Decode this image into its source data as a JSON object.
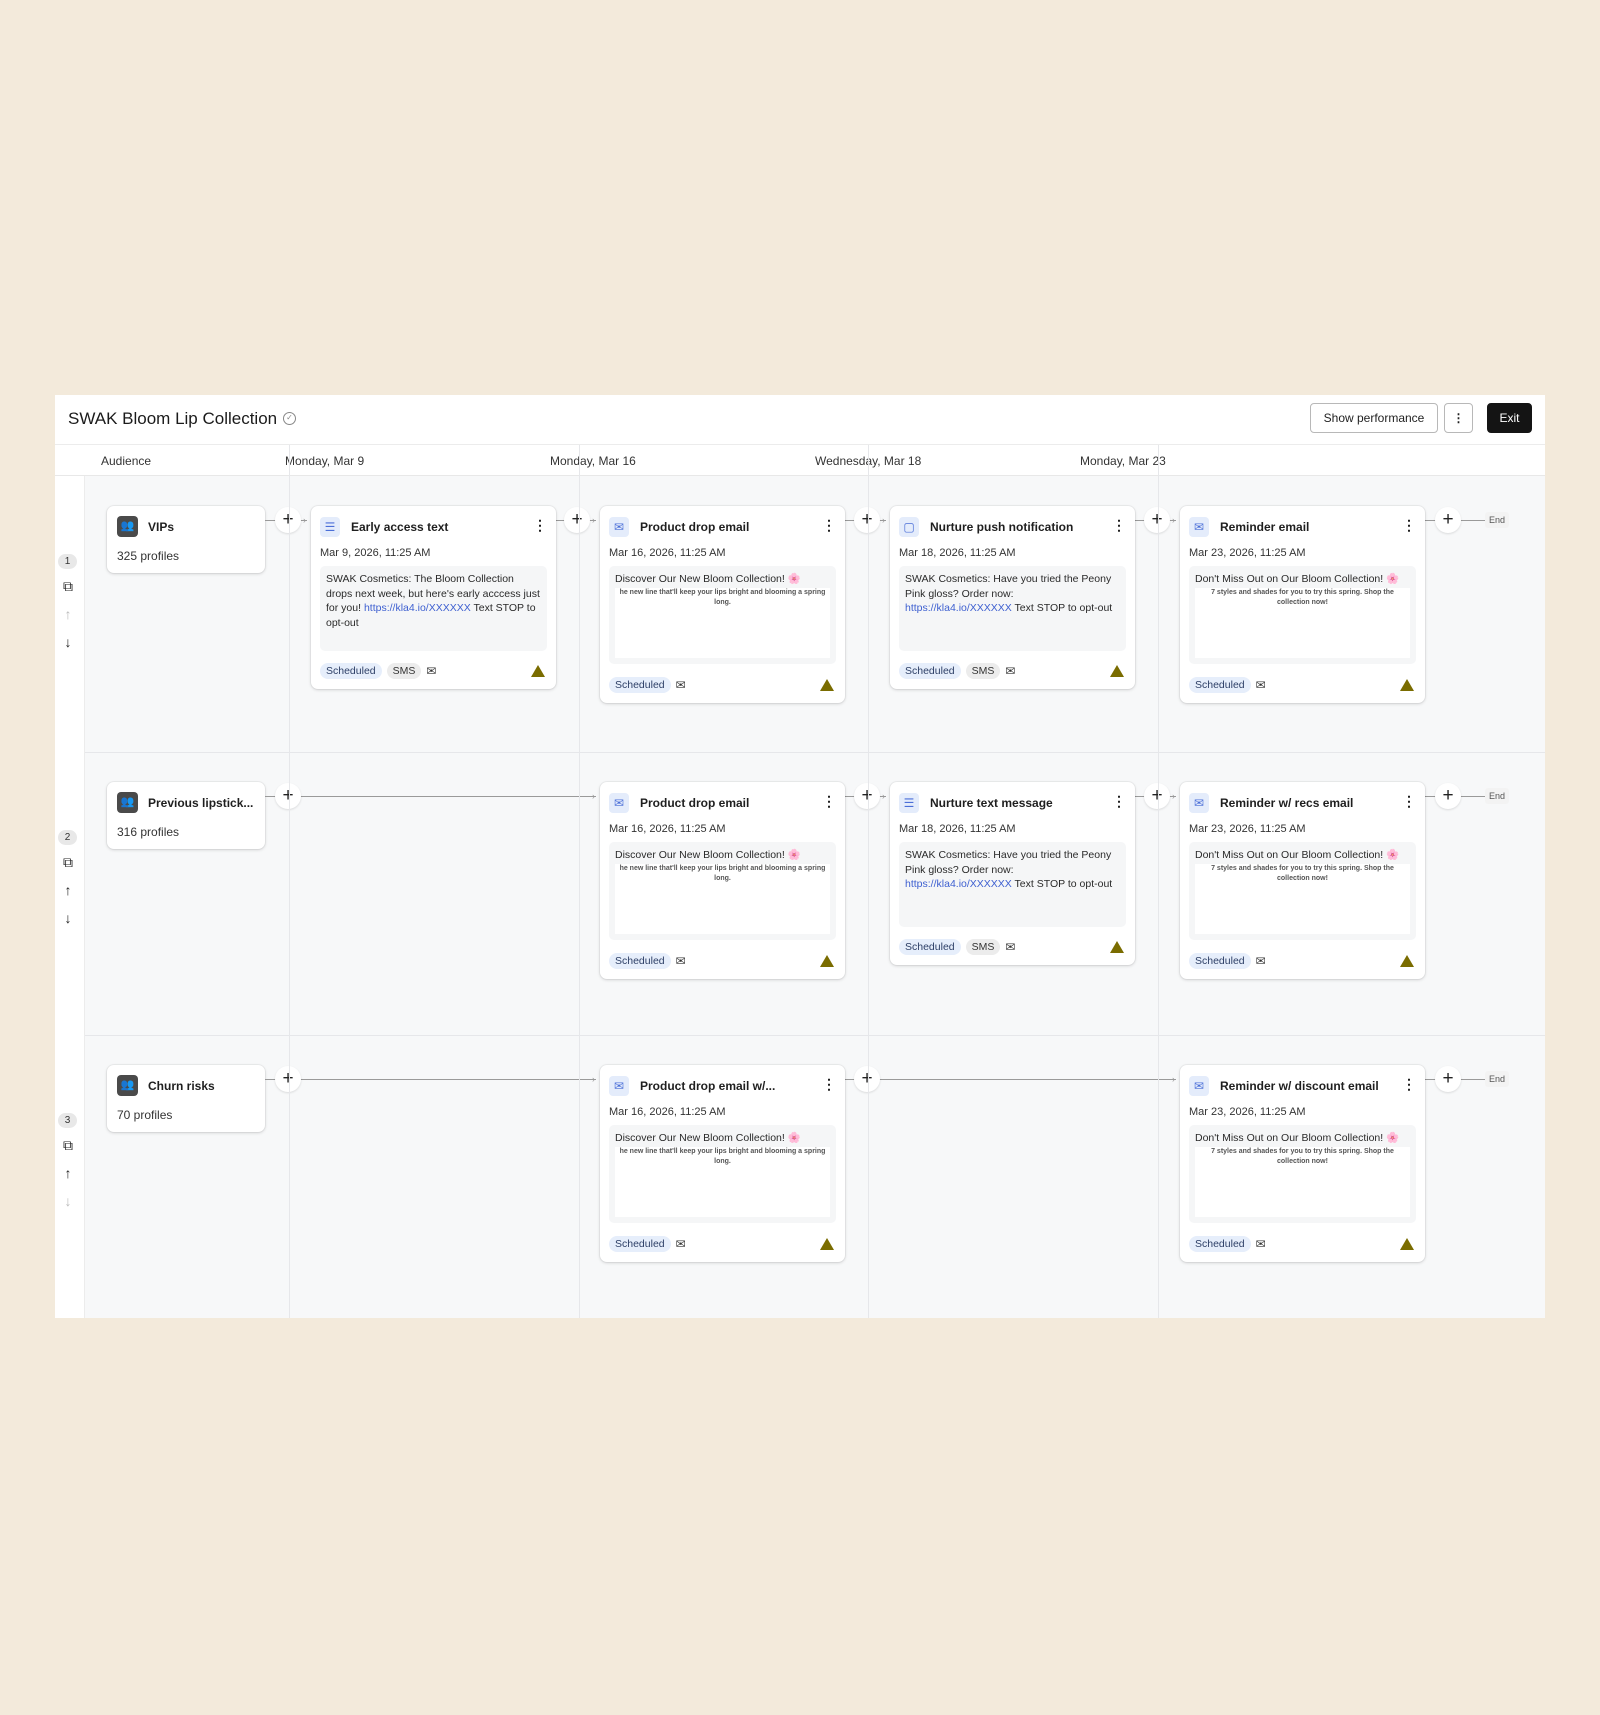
{
  "header": {
    "title": "SWAK Bloom Lip Collection",
    "show_performance": "Show performance",
    "more": "⋮",
    "exit": "Exit"
  },
  "columns": [
    "Audience",
    "Monday, Mar 9",
    "Monday, Mar 16",
    "Wednesday, Mar 18",
    "Monday, Mar 23"
  ],
  "end_label": "End",
  "status_colors": {
    "scheduled_bg": "#e6eefb",
    "warning": "#7a6c00",
    "exit_bg": "#141414"
  },
  "rows": [
    {
      "number": "1",
      "audience": {
        "name": "VIPs",
        "count": "325 profiles"
      },
      "up_enabled": false,
      "down_enabled": true,
      "cells": [
        {
          "channel": "sms",
          "icon": "message-icon",
          "title": "Early access text",
          "date": "Mar 9, 2026, 11:25 AM",
          "text": "SWAK Cosmetics: The Bloom Collection drops next week, but here's early acccess just for you! ",
          "link": "https://kla4.io/XXXXXX",
          "text_after": " Text STOP to opt-out",
          "status": "Scheduled",
          "type_tag": "SMS"
        },
        {
          "channel": "email",
          "icon": "mail-icon",
          "title": "Product drop email",
          "date": "Mar 16, 2026, 11:25 AM",
          "subject": "Discover Our New Bloom Collection! 🌸",
          "body": "he new line that'll keep your lips bright and blooming a spring long.",
          "status": "Scheduled"
        },
        {
          "channel": "sms",
          "icon": "push-notification-icon",
          "title": "Nurture push notification",
          "date": "Mar 18, 2026, 11:25 AM",
          "text": "SWAK Cosmetics: Have you tried the Peony Pink gloss? Order now: ",
          "link": "https://kla4.io/XXXXXX",
          "text_after": " Text STOP to opt-out",
          "status": "Scheduled",
          "type_tag": "SMS"
        },
        {
          "channel": "email",
          "icon": "mail-icon",
          "title": "Reminder email",
          "date": "Mar 23, 2026, 11:25 AM",
          "subject": "Don't Miss Out on Our Bloom Collection! 🌸",
          "body": "7 styles and shades for you to try this spring. Shop the collection now!",
          "status": "Scheduled"
        }
      ]
    },
    {
      "number": "2",
      "audience": {
        "name": "Previous lipstick...",
        "count": "316 profiles"
      },
      "up_enabled": true,
      "down_enabled": true,
      "cells": [
        null,
        {
          "channel": "email",
          "icon": "mail-icon",
          "title": "Product drop email",
          "date": "Mar 16, 2026, 11:25 AM",
          "subject": "Discover Our New Bloom Collection! 🌸",
          "body": "he new line that'll keep your lips bright and blooming a spring long.",
          "status": "Scheduled"
        },
        {
          "channel": "sms",
          "icon": "message-icon",
          "title": "Nurture text message",
          "date": "Mar 18, 2026, 11:25 AM",
          "text": "SWAK Cosmetics: Have you tried the Peony Pink gloss? Order now: ",
          "link": "https://kla4.io/XXXXXX",
          "text_after": " Text STOP to opt-out",
          "status": "Scheduled",
          "type_tag": "SMS"
        },
        {
          "channel": "email",
          "icon": "mail-icon",
          "title": "Reminder w/ recs email",
          "date": "Mar 23, 2026, 11:25 AM",
          "subject": "Don't Miss Out on Our Bloom Collection! 🌸",
          "body": "7 styles and shades for you to try this spring. Shop the collection now!",
          "status": "Scheduled"
        }
      ]
    },
    {
      "number": "3",
      "audience": {
        "name": "Churn risks",
        "count": "70 profiles"
      },
      "up_enabled": true,
      "down_enabled": false,
      "cells": [
        null,
        {
          "channel": "email",
          "icon": "mail-icon",
          "title": "Product drop email w/...",
          "date": "Mar 16, 2026, 11:25 AM",
          "subject": "Discover Our New Bloom Collection! 🌸",
          "body": "he new line that'll keep your lips bright and blooming a spring long.",
          "status": "Scheduled"
        },
        null,
        {
          "channel": "email",
          "icon": "mail-icon",
          "title": "Reminder w/ discount email",
          "date": "Mar 23, 2026, 11:25 AM",
          "subject": "Don't Miss Out on Our Bloom Collection! 🌸",
          "body": "7 styles and shades for you to try this spring. Shop the collection now!",
          "status": "Scheduled"
        }
      ]
    }
  ]
}
